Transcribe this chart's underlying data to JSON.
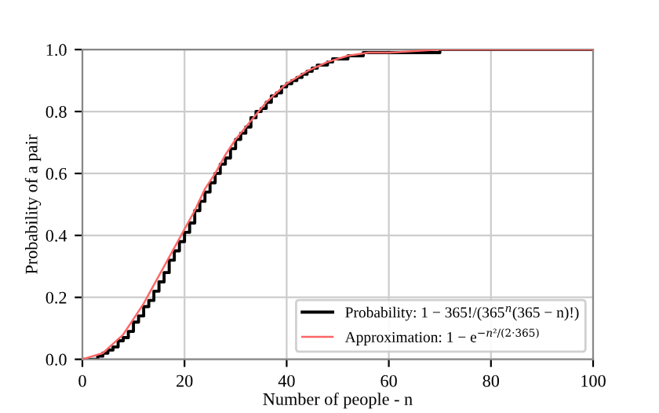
{
  "chart_data": {
    "type": "line",
    "xlabel": "Number of people - n",
    "ylabel": "Probability of a pair",
    "xlim": [
      0,
      100
    ],
    "ylim": [
      0,
      1.0
    ],
    "xticks": [
      0,
      20,
      40,
      60,
      80,
      100
    ],
    "yticks": [
      {
        "value": 0,
        "label": "0.0"
      },
      0.2,
      0.4,
      0.6,
      0.8,
      {
        "value": 1.0,
        "label": "1.0"
      }
    ],
    "grid": true,
    "legend": "bottom right",
    "series": [
      {
        "name": "Probability: 1 − 365!/(365$^{n}$(365 − n)!)",
        "type": "step",
        "color": "#000000",
        "x": [
          0,
          1,
          2,
          3,
          4,
          5,
          6,
          7,
          8,
          9,
          10,
          11,
          12,
          13,
          14,
          15,
          16,
          17,
          18,
          19,
          20,
          21,
          22,
          23,
          24,
          25,
          26,
          27,
          28,
          29,
          30,
          31,
          32,
          33,
          34,
          35,
          36,
          37,
          38,
          39,
          40,
          41,
          42,
          43,
          44,
          45,
          46,
          47,
          48,
          49,
          50,
          51,
          52,
          53,
          54,
          55,
          56,
          57,
          58,
          59,
          60,
          70,
          80,
          90,
          100
        ],
        "values": [
          0,
          0,
          0.0,
          0.01,
          0.02,
          0.03,
          0.04,
          0.06,
          0.07,
          0.09,
          0.12,
          0.14,
          0.17,
          0.19,
          0.22,
          0.25,
          0.28,
          0.32,
          0.35,
          0.38,
          0.41,
          0.44,
          0.48,
          0.51,
          0.54,
          0.57,
          0.6,
          0.63,
          0.65,
          0.68,
          0.71,
          0.73,
          0.75,
          0.78,
          0.8,
          0.81,
          0.83,
          0.85,
          0.86,
          0.88,
          0.89,
          0.9,
          0.91,
          0.92,
          0.93,
          0.94,
          0.95,
          0.95,
          0.96,
          0.97,
          0.97,
          0.97,
          0.98,
          0.98,
          0.98,
          0.99,
          0.99,
          0.99,
          0.99,
          0.99,
          0.99,
          1.0,
          1.0,
          1.0,
          1.0
        ]
      },
      {
        "name": "Approximation: 1 − e$^{−n²/(2·365)}$",
        "color": "#ff6666",
        "x": [
          0,
          2,
          4,
          6,
          8,
          10,
          12,
          14,
          16,
          18,
          20,
          22,
          24,
          26,
          28,
          30,
          32,
          34,
          36,
          38,
          40,
          44,
          48,
          52,
          56,
          60,
          70,
          80,
          100
        ],
        "values": [
          0,
          0.01,
          0.02,
          0.05,
          0.08,
          0.13,
          0.18,
          0.24,
          0.3,
          0.36,
          0.42,
          0.48,
          0.55,
          0.6,
          0.66,
          0.71,
          0.75,
          0.79,
          0.83,
          0.86,
          0.89,
          0.93,
          0.96,
          0.98,
          0.99,
          0.99,
          1.0,
          1.0,
          1.0
        ]
      }
    ]
  }
}
